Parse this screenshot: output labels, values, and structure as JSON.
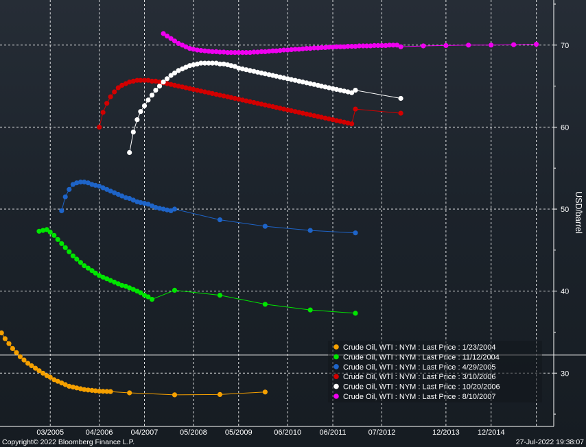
{
  "chart_data": {
    "type": "line",
    "title": "",
    "xlabel": "",
    "ylabel": "USD/barrel",
    "ylim": [
      23.5,
      75.5
    ],
    "xlim": [
      "2004-01-20",
      "2016-04-20"
    ],
    "y_ticks": [
      30,
      40,
      50,
      60,
      70
    ],
    "x_ticks": [
      {
        "label": "03/2005",
        "date": "2005-03-01"
      },
      {
        "label": "04/2006",
        "date": "2006-04-01"
      },
      {
        "label": "04/2007",
        "date": "2007-04-01"
      },
      {
        "label": "05/2008",
        "date": "2008-05-01"
      },
      {
        "label": "05/2009",
        "date": "2009-05-01"
      },
      {
        "label": "06/2010",
        "date": "2010-06-01"
      },
      {
        "label": "06/2011",
        "date": "2011-06-01"
      },
      {
        "label": "07/2012",
        "date": "2012-07-01"
      },
      {
        "label": "12/2013",
        "date": "2013-12-01"
      },
      {
        "label": "12/2014",
        "date": "2014-12-01"
      }
    ],
    "reference_line": 32.2,
    "grid": true,
    "legend_position": "bottom-right",
    "series": [
      {
        "name": "Crude Oil, WTI : NYM : Last Price : 1/23/2004",
        "color": "#f5a000",
        "x": [
          "2004-02-01",
          "2004-03-01",
          "2004-04-01",
          "2004-05-01",
          "2004-06-01",
          "2004-07-01",
          "2004-08-01",
          "2004-09-01",
          "2004-10-01",
          "2004-11-01",
          "2004-12-01",
          "2005-01-01",
          "2005-02-01",
          "2005-03-01",
          "2005-04-01",
          "2005-05-01",
          "2005-06-01",
          "2005-07-01",
          "2005-08-01",
          "2005-09-01",
          "2005-10-01",
          "2005-11-01",
          "2005-12-01",
          "2006-01-01",
          "2006-02-01",
          "2006-03-01",
          "2006-04-01",
          "2006-05-01",
          "2006-06-01",
          "2006-07-01",
          "2006-12-01",
          "2007-12-01",
          "2008-12-01",
          "2009-12-01"
        ],
        "y": [
          34.9,
          34.2,
          33.6,
          33.0,
          32.5,
          32.0,
          31.6,
          31.2,
          30.9,
          30.6,
          30.3,
          30.0,
          29.7,
          29.5,
          29.2,
          29.0,
          28.8,
          28.6,
          28.4,
          28.3,
          28.2,
          28.1,
          28.0,
          27.95,
          27.9,
          27.85,
          27.8,
          27.78,
          27.76,
          27.75,
          27.6,
          27.35,
          27.4,
          27.7
        ]
      },
      {
        "name": "Crude Oil, WTI : NYM : Last Price : 11/12/2004",
        "color": "#00e600",
        "x": [
          "2004-12-01",
          "2005-01-01",
          "2005-02-01",
          "2005-03-01",
          "2005-04-01",
          "2005-05-01",
          "2005-06-01",
          "2005-07-01",
          "2005-08-01",
          "2005-09-01",
          "2005-10-01",
          "2005-11-01",
          "2005-12-01",
          "2006-01-01",
          "2006-02-01",
          "2006-03-01",
          "2006-04-01",
          "2006-05-01",
          "2006-06-01",
          "2006-07-01",
          "2006-08-01",
          "2006-09-01",
          "2006-10-01",
          "2006-11-01",
          "2006-12-01",
          "2007-01-01",
          "2007-02-01",
          "2007-03-01",
          "2007-04-01",
          "2007-05-01",
          "2007-06-01",
          "2007-12-01",
          "2008-12-01",
          "2009-12-01",
          "2010-12-01",
          "2011-12-01"
        ],
        "y": [
          47.3,
          47.4,
          47.5,
          47.2,
          46.8,
          46.3,
          45.8,
          45.3,
          44.8,
          44.3,
          43.9,
          43.5,
          43.1,
          42.8,
          42.5,
          42.2,
          41.9,
          41.7,
          41.5,
          41.3,
          41.1,
          40.9,
          40.7,
          40.6,
          40.4,
          40.2,
          40.0,
          39.8,
          39.5,
          39.3,
          39.0,
          40.1,
          39.5,
          38.4,
          37.7,
          37.3
        ]
      },
      {
        "name": "Crude Oil, WTI : NYM : Last Price : 4/29/2005",
        "color": "#1e64c8",
        "x": [
          "2005-06-01",
          "2005-07-01",
          "2005-08-01",
          "2005-09-01",
          "2005-10-01",
          "2005-11-01",
          "2005-12-01",
          "2006-01-01",
          "2006-02-01",
          "2006-03-01",
          "2006-04-01",
          "2006-05-01",
          "2006-06-01",
          "2006-07-01",
          "2006-08-01",
          "2006-09-01",
          "2006-10-01",
          "2006-11-01",
          "2006-12-01",
          "2007-01-01",
          "2007-02-01",
          "2007-03-01",
          "2007-04-01",
          "2007-05-01",
          "2007-06-01",
          "2007-07-01",
          "2007-08-01",
          "2007-09-01",
          "2007-10-01",
          "2007-11-01",
          "2007-12-01",
          "2008-12-01",
          "2009-12-01",
          "2010-12-01",
          "2011-12-01"
        ],
        "y": [
          49.8,
          51.5,
          52.4,
          53.0,
          53.2,
          53.3,
          53.3,
          53.2,
          53.0,
          52.9,
          52.8,
          52.6,
          52.4,
          52.2,
          52.0,
          51.8,
          51.6,
          51.4,
          51.3,
          51.1,
          50.9,
          50.8,
          50.7,
          50.6,
          50.4,
          50.2,
          50.1,
          50.0,
          49.9,
          49.8,
          50.0,
          48.7,
          47.9,
          47.4,
          47.1
        ]
      },
      {
        "name": "Crude Oil, WTI : NYM : Last Price : 3/10/2006",
        "color": "#d20000",
        "x": [
          "2006-04-01",
          "2006-05-01",
          "2006-06-01",
          "2006-07-01",
          "2006-08-01",
          "2006-09-01",
          "2006-10-01",
          "2006-11-01",
          "2006-12-01",
          "2007-01-01",
          "2007-02-01",
          "2007-03-01",
          "2007-04-01",
          "2007-05-01",
          "2007-06-01",
          "2007-07-01",
          "2007-08-01",
          "2007-09-01",
          "2007-10-01",
          "2007-11-01",
          "2007-12-01",
          "2008-01-01",
          "2008-02-01",
          "2008-03-01",
          "2008-04-01",
          "2008-05-01",
          "2008-06-01",
          "2008-07-01",
          "2008-08-01",
          "2008-09-01",
          "2008-10-01",
          "2008-11-01",
          "2008-12-01",
          "2009-01-01",
          "2009-02-01",
          "2009-03-01",
          "2009-04-01",
          "2009-05-01",
          "2009-06-01",
          "2009-07-01",
          "2009-08-01",
          "2009-09-01",
          "2009-10-01",
          "2009-11-01",
          "2009-12-01",
          "2010-01-01",
          "2010-02-01",
          "2010-03-01",
          "2010-04-01",
          "2010-05-01",
          "2010-06-01",
          "2010-07-01",
          "2010-08-01",
          "2010-09-01",
          "2010-10-01",
          "2010-11-01",
          "2010-12-01",
          "2011-01-01",
          "2011-02-01",
          "2011-03-01",
          "2011-04-01",
          "2011-05-01",
          "2011-06-01",
          "2011-07-01",
          "2011-08-01",
          "2011-09-01",
          "2011-10-01",
          "2011-11-01",
          "2011-12-01",
          "2012-12-01"
        ],
        "y": [
          60.0,
          61.8,
          62.9,
          63.7,
          64.3,
          64.8,
          65.1,
          65.3,
          65.5,
          65.6,
          65.7,
          65.7,
          65.7,
          65.7,
          65.6,
          65.6,
          65.5,
          65.4,
          65.3,
          65.2,
          65.1,
          65.0,
          64.9,
          64.8,
          64.7,
          64.6,
          64.5,
          64.4,
          64.3,
          64.2,
          64.1,
          64.0,
          63.9,
          63.8,
          63.7,
          63.6,
          63.5,
          63.4,
          63.3,
          63.2,
          63.1,
          63.0,
          62.9,
          62.8,
          62.7,
          62.6,
          62.5,
          62.4,
          62.3,
          62.2,
          62.1,
          62.0,
          61.9,
          61.8,
          61.7,
          61.6,
          61.5,
          61.4,
          61.3,
          61.2,
          61.1,
          61.0,
          60.9,
          60.8,
          60.7,
          60.6,
          60.5,
          60.4,
          62.2,
          61.7
        ]
      },
      {
        "name": "Crude Oil, WTI : NYM : Last Price : 10/20/2006",
        "color": "#ffffff",
        "x": [
          "2006-12-01",
          "2007-01-01",
          "2007-02-01",
          "2007-03-01",
          "2007-04-01",
          "2007-05-01",
          "2007-06-01",
          "2007-07-01",
          "2007-08-01",
          "2007-09-01",
          "2007-10-01",
          "2007-11-01",
          "2007-12-01",
          "2008-01-01",
          "2008-02-01",
          "2008-03-01",
          "2008-04-01",
          "2008-05-01",
          "2008-06-01",
          "2008-07-01",
          "2008-08-01",
          "2008-09-01",
          "2008-10-01",
          "2008-11-01",
          "2008-12-01",
          "2009-01-01",
          "2009-02-01",
          "2009-03-01",
          "2009-04-01",
          "2009-05-01",
          "2009-06-01",
          "2009-07-01",
          "2009-08-01",
          "2009-09-01",
          "2009-10-01",
          "2009-11-01",
          "2009-12-01",
          "2010-01-01",
          "2010-02-01",
          "2010-03-01",
          "2010-04-01",
          "2010-05-01",
          "2010-06-01",
          "2010-07-01",
          "2010-08-01",
          "2010-09-01",
          "2010-10-01",
          "2010-11-01",
          "2010-12-01",
          "2011-01-01",
          "2011-02-01",
          "2011-03-01",
          "2011-04-01",
          "2011-05-01",
          "2011-06-01",
          "2011-07-01",
          "2011-08-01",
          "2011-09-01",
          "2011-10-01",
          "2011-11-01",
          "2011-12-01",
          "2012-12-01"
        ],
        "y": [
          56.9,
          59.4,
          60.9,
          61.9,
          62.6,
          63.3,
          63.9,
          64.5,
          65.0,
          65.5,
          65.9,
          66.3,
          66.6,
          66.9,
          67.1,
          67.3,
          67.5,
          67.6,
          67.7,
          67.8,
          67.8,
          67.8,
          67.8,
          67.8,
          67.7,
          67.7,
          67.6,
          67.5,
          67.4,
          67.2,
          67.1,
          67.0,
          66.9,
          66.8,
          66.7,
          66.6,
          66.5,
          66.4,
          66.3,
          66.2,
          66.1,
          66.0,
          65.9,
          65.8,
          65.7,
          65.6,
          65.5,
          65.4,
          65.3,
          65.2,
          65.1,
          65.0,
          64.9,
          64.8,
          64.7,
          64.6,
          64.5,
          64.4,
          64.3,
          64.2,
          64.5,
          63.5
        ]
      },
      {
        "name": "Crude Oil, WTI : NYM : Last Price : 8/10/2007",
        "color": "#f000f0",
        "x": [
          "2007-09-01",
          "2007-10-01",
          "2007-11-01",
          "2007-12-01",
          "2008-01-01",
          "2008-02-01",
          "2008-03-01",
          "2008-04-01",
          "2008-05-01",
          "2008-06-01",
          "2008-07-01",
          "2008-08-01",
          "2008-09-01",
          "2008-10-01",
          "2008-11-01",
          "2008-12-01",
          "2009-01-01",
          "2009-02-01",
          "2009-03-01",
          "2009-04-01",
          "2009-05-01",
          "2009-06-01",
          "2009-07-01",
          "2009-08-01",
          "2009-09-01",
          "2009-10-01",
          "2009-11-01",
          "2009-12-01",
          "2010-01-01",
          "2010-02-01",
          "2010-03-01",
          "2010-04-01",
          "2010-05-01",
          "2010-06-01",
          "2010-07-01",
          "2010-08-01",
          "2010-09-01",
          "2010-10-01",
          "2010-11-01",
          "2010-12-01",
          "2011-01-01",
          "2011-02-01",
          "2011-03-01",
          "2011-04-01",
          "2011-05-01",
          "2011-06-01",
          "2011-07-01",
          "2011-08-01",
          "2011-09-01",
          "2011-10-01",
          "2011-11-01",
          "2011-12-01",
          "2012-01-01",
          "2012-02-01",
          "2012-03-01",
          "2012-04-01",
          "2012-05-01",
          "2012-06-01",
          "2012-07-01",
          "2012-08-01",
          "2012-09-01",
          "2012-10-01",
          "2012-11-01",
          "2012-12-01",
          "2013-06-01",
          "2013-12-01",
          "2014-06-01",
          "2014-12-01",
          "2015-06-01",
          "2015-12-01"
        ],
        "y": [
          71.4,
          71.1,
          70.8,
          70.5,
          70.2,
          70.0,
          69.8,
          69.6,
          69.5,
          69.4,
          69.35,
          69.3,
          69.25,
          69.2,
          69.2,
          69.15,
          69.15,
          69.1,
          69.1,
          69.1,
          69.1,
          69.1,
          69.1,
          69.1,
          69.15,
          69.15,
          69.2,
          69.2,
          69.25,
          69.3,
          69.3,
          69.35,
          69.4,
          69.4,
          69.45,
          69.5,
          69.5,
          69.55,
          69.6,
          69.6,
          69.65,
          69.65,
          69.7,
          69.7,
          69.75,
          69.75,
          69.8,
          69.8,
          69.8,
          69.85,
          69.85,
          69.85,
          69.9,
          69.9,
          69.9,
          69.9,
          69.95,
          69.95,
          69.95,
          69.95,
          70.0,
          70.0,
          70.0,
          69.8,
          69.9,
          69.95,
          70.0,
          70.0,
          70.05,
          70.1
        ]
      }
    ]
  },
  "footer": {
    "copyright": "Copyright© 2022 Bloomberg Finance L.P.",
    "timestamp": "27-Jul-2022 19:38:07"
  }
}
